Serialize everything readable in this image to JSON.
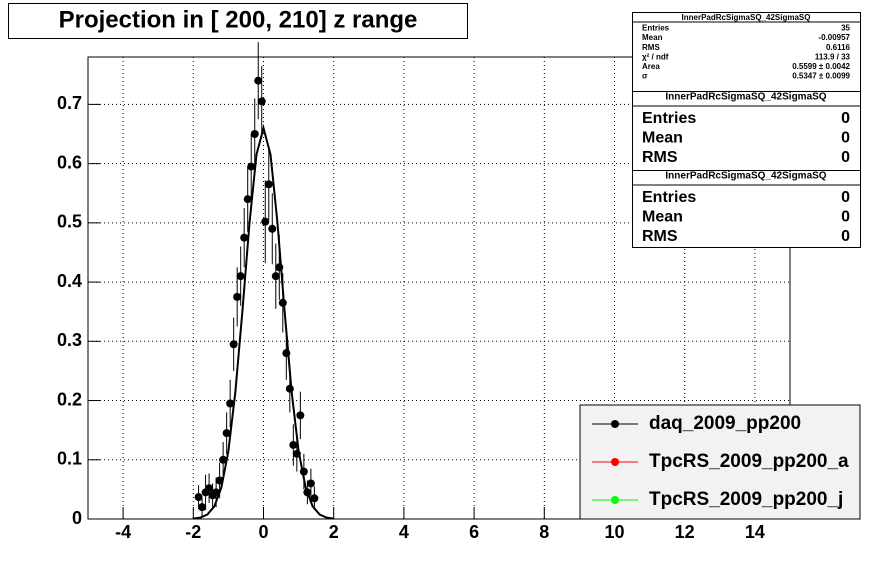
{
  "chart_data": {
    "type": "scatter",
    "title": "Projection in [ 200, 210] z range",
    "xlim": [
      -5,
      15
    ],
    "ylim": [
      0,
      0.78
    ],
    "xticks": [
      -4,
      -2,
      0,
      2,
      4,
      6,
      8,
      10,
      12,
      14
    ],
    "yticks": [
      0,
      0.1,
      0.2,
      0.3,
      0.4,
      0.5,
      0.6,
      0.7
    ],
    "grid": true,
    "legend": "lower-right",
    "series": [
      {
        "name": "daq_2009_pp200",
        "color": "#000000",
        "x": [
          -1.85,
          -1.75,
          -1.65,
          -1.55,
          -1.45,
          -1.35,
          -1.25,
          -1.15,
          -1.05,
          -0.95,
          -0.85,
          -0.75,
          -0.65,
          -0.55,
          -0.45,
          -0.35,
          -0.25,
          -0.15,
          -0.05,
          0.05,
          0.15,
          0.25,
          0.35,
          0.45,
          0.55,
          0.65,
          0.75,
          0.85,
          0.95,
          1.05,
          1.15,
          1.25,
          1.35,
          1.45
        ],
        "values": [
          0.037,
          0.02,
          0.045,
          0.052,
          0.04,
          0.045,
          0.065,
          0.1,
          0.145,
          0.195,
          0.295,
          0.375,
          0.41,
          0.475,
          0.54,
          0.595,
          0.65,
          0.74,
          0.705,
          0.502,
          0.565,
          0.49,
          0.41,
          0.425,
          0.365,
          0.28,
          0.22,
          0.125,
          0.11,
          0.175,
          0.08,
          0.045,
          0.06,
          0.035
        ],
        "errors": [
          0.02,
          0.015,
          0.03,
          0.025,
          0.02,
          0.025,
          0.03,
          0.03,
          0.035,
          0.04,
          0.045,
          0.05,
          0.05,
          0.05,
          0.055,
          0.055,
          0.06,
          0.065,
          0.06,
          0.07,
          0.06,
          0.06,
          0.055,
          0.055,
          0.05,
          0.045,
          0.04,
          0.035,
          0.03,
          0.04,
          0.03,
          0.02,
          0.025,
          0.02
        ]
      },
      {
        "name": "TpcRS_2009_pp200_a",
        "color": "#ff0000",
        "x": [],
        "values": [],
        "errors": []
      },
      {
        "name": "TpcRS_2009_pp200_j",
        "color": "#00ff00",
        "x": [],
        "values": [],
        "errors": []
      }
    ],
    "fit": {
      "color": "#000000",
      "x": [
        -2,
        -1.8,
        -1.6,
        -1.4,
        -1.2,
        -1.0,
        -0.8,
        -0.6,
        -0.4,
        -0.2,
        0,
        0.2,
        0.4,
        0.6,
        0.8,
        1.0,
        1.2,
        1.4,
        1.6,
        1.8,
        2
      ],
      "values": [
        0.0006,
        0.0023,
        0.0075,
        0.0214,
        0.0532,
        0.1148,
        0.2155,
        0.3516,
        0.499,
        0.6154,
        0.66,
        0.6154,
        0.499,
        0.3516,
        0.2155,
        0.1148,
        0.0532,
        0.0214,
        0.0075,
        0.0023,
        0.0006
      ]
    },
    "stats": [
      {
        "title": "InnerPadRcSigmaSQ_42SigmaSQ",
        "rows": [
          [
            "Entries",
            "35"
          ],
          [
            "Mean",
            "-0.00957"
          ],
          [
            "RMS",
            "0.6116"
          ],
          [
            "χ² / ndf",
            "113.9 / 33"
          ],
          [
            "Area",
            "0.5599 ± 0.0042"
          ],
          [
            "σ",
            "0.5347 ± 0.0099"
          ]
        ]
      },
      {
        "title": "InnerPadRcSigmaSQ_42SigmaSQ",
        "rows": [
          [
            "Entries",
            "0"
          ],
          [
            "Mean",
            "0"
          ],
          [
            "RMS",
            "0"
          ]
        ]
      },
      {
        "title": "InnerPadRcSigmaSQ_42SigmaSQ",
        "rows": [
          [
            "Entries",
            "0"
          ],
          [
            "Mean",
            "0"
          ],
          [
            "RMS",
            "0"
          ]
        ]
      }
    ]
  }
}
